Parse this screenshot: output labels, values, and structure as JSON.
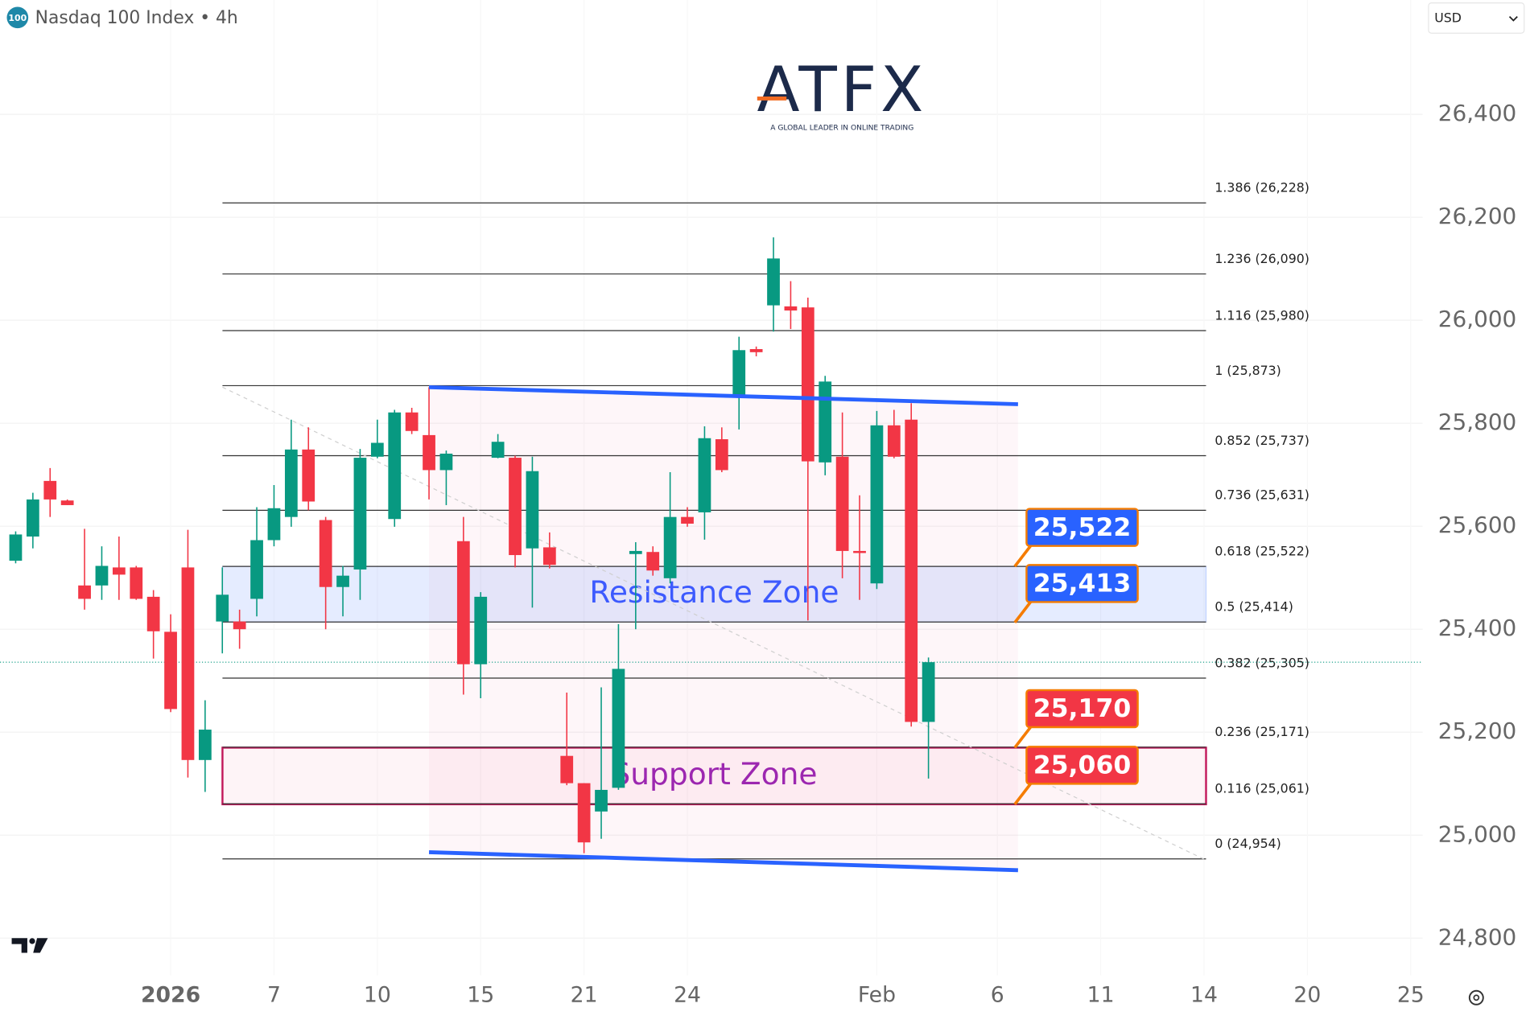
{
  "chart_data": {
    "type": "candlestick",
    "badge": "100",
    "title": "Nasdaq 100 Index • 4h",
    "currency": "USD",
    "logo": "ATFX",
    "logo_tagline": "A GLOBAL LEADER IN ONLINE TRADING",
    "up_color": "#089981",
    "down_color": "#f23645",
    "x": [
      1,
      2,
      3,
      4,
      5,
      6,
      7,
      8,
      9,
      10,
      11,
      12,
      13,
      14,
      15,
      16,
      17,
      18,
      19,
      20,
      21,
      22,
      23,
      24,
      25,
      26,
      27,
      28,
      29,
      30,
      31,
      32,
      33,
      34,
      35,
      36,
      37,
      38,
      39,
      40,
      41,
      42,
      43,
      44,
      45,
      46,
      47,
      48,
      49,
      50,
      51,
      52,
      53,
      54
    ],
    "open": [
      25533,
      25580,
      25688,
      25650,
      25485,
      25485,
      25520,
      25520,
      25463,
      25395,
      25520,
      25146,
      25415,
      25415,
      25459,
      25573,
      25618,
      25749,
      25612,
      25482,
      25516,
      25735,
      25614,
      25821,
      25777,
      25709,
      25571,
      25332,
      25733,
      25733,
      25557,
      25559,
      25154,
      25101,
      25046,
      25092,
      25546,
      25550,
      25499,
      25618,
      25627,
      25769,
      25851,
      25944,
      26029,
      26027,
      26025,
      25724,
      25735,
      25552,
      25489,
      25796,
      25807,
      25220
    ],
    "high": [
      25590,
      25665,
      25713,
      25652,
      25595,
      25561,
      25580,
      25523,
      25476,
      25429,
      25593,
      25262,
      25520,
      25438,
      25637,
      25680,
      25807,
      25792,
      25618,
      25523,
      25750,
      25807,
      25826,
      25830,
      25870,
      25747,
      25618,
      25472,
      25779,
      25737,
      25735,
      25588,
      25277,
      25101,
      25287,
      25410,
      25569,
      25561,
      25705,
      25637,
      25794,
      25792,
      25968,
      25949,
      26161,
      26076,
      26044,
      25892,
      25821,
      25660,
      25824,
      25826,
      25839,
      25345
    ],
    "low": [
      25528,
      25557,
      25618,
      25641,
      25438,
      25457,
      25457,
      25457,
      25343,
      25239,
      25112,
      25084,
      25353,
      25362,
      25425,
      25561,
      25599,
      25631,
      25400,
      25425,
      25457,
      25732,
      25599,
      25779,
      25652,
      25641,
      25273,
      25266,
      25732,
      25520,
      25442,
      25518,
      25097,
      24965,
      24993,
      25088,
      25400,
      25504,
      25489,
      25599,
      25574,
      25705,
      25788,
      25930,
      25978,
      25983,
      25417,
      25699,
      25499,
      25457,
      25478,
      25732,
      25211,
      25110
    ],
    "close": [
      25584,
      25652,
      25652,
      25641,
      25459,
      25523,
      25506,
      25459,
      25396,
      25245,
      25146,
      25205,
      25467,
      25400,
      25573,
      25635,
      25749,
      25648,
      25482,
      25504,
      25733,
      25762,
      25821,
      25785,
      25709,
      25741,
      25332,
      25463,
      25764,
      25544,
      25707,
      25525,
      25101,
      24986,
      25088,
      25323,
      25552,
      25514,
      25618,
      25605,
      25771,
      25709,
      25942,
      25938,
      26120,
      26019,
      25726,
      25881,
      25552,
      25548,
      25796,
      25735,
      25220,
      25336
    ],
    "xlim": [
      0,
      83
    ],
    "xticks": [
      {
        "value": 10,
        "label": "2026"
      },
      {
        "value": 16,
        "label": "7"
      },
      {
        "value": 22,
        "label": "10"
      },
      {
        "value": 28,
        "label": "15"
      },
      {
        "value": 34,
        "label": "21"
      },
      {
        "value": 40,
        "label": "24"
      },
      {
        "value": 51,
        "label": "Feb"
      },
      {
        "value": 58,
        "label": "6"
      },
      {
        "value": 64,
        "label": "11"
      },
      {
        "value": 70,
        "label": "14"
      },
      {
        "value": 76,
        "label": "20"
      },
      {
        "value": 82,
        "label": "25"
      }
    ],
    "ylim": [
      24728,
      26622
    ],
    "yticks": [
      {
        "value": 24800,
        "label": "24,800"
      },
      {
        "value": 25000,
        "label": "25,000"
      },
      {
        "value": 25200,
        "label": "25,200"
      },
      {
        "value": 25400,
        "label": "25,400"
      },
      {
        "value": 25600,
        "label": "25,600"
      },
      {
        "value": 25800,
        "label": "25,800"
      },
      {
        "value": 26000,
        "label": "26,000"
      },
      {
        "value": 26200,
        "label": "26,200"
      },
      {
        "value": 26400,
        "label": "26,400"
      }
    ],
    "grid": true,
    "fib_levels": [
      {
        "value": 26228,
        "label": "1.386 (26,228)"
      },
      {
        "value": 26090,
        "label": "1.236 (26,090)"
      },
      {
        "value": 25980,
        "label": "1.116 (25,980)"
      },
      {
        "value": 25873,
        "label": "1 (25,873)"
      },
      {
        "value": 25737,
        "label": "0.852 (25,737)"
      },
      {
        "value": 25631,
        "label": "0.736 (25,631)"
      },
      {
        "value": 25522,
        "label": "0.618 (25,522)"
      },
      {
        "value": 25414,
        "label": "0.5 (25,414)"
      },
      {
        "value": 25305,
        "label": "0.382 (25,305)"
      },
      {
        "value": 25171,
        "label": "0.236 (25,171)"
      },
      {
        "value": 25061,
        "label": "0.116 (25,061)"
      },
      {
        "value": 24954,
        "label": "0 (24,954)"
      }
    ],
    "zones": [
      {
        "name": "Resistance Zone",
        "top": 25522,
        "bottom": 25414,
        "color": "#3d5afe"
      },
      {
        "name": "Support Zone",
        "top": 25170,
        "bottom": 25060,
        "color": "#9c27b0"
      }
    ],
    "price_labels": [
      {
        "value": 25522,
        "label": "25,522",
        "color": "#2962ff"
      },
      {
        "value": 25413,
        "label": "25,413",
        "color": "#2962ff"
      },
      {
        "value": 25170,
        "label": "25,170",
        "color": "#f23645"
      },
      {
        "value": 25060,
        "label": "25,060",
        "color": "#f23645"
      }
    ],
    "channel": {
      "x": [
        25,
        59.2
      ],
      "upper": [
        25870,
        25837
      ],
      "lower": [
        24967,
        24932
      ],
      "color": "#2962ff"
    }
  }
}
